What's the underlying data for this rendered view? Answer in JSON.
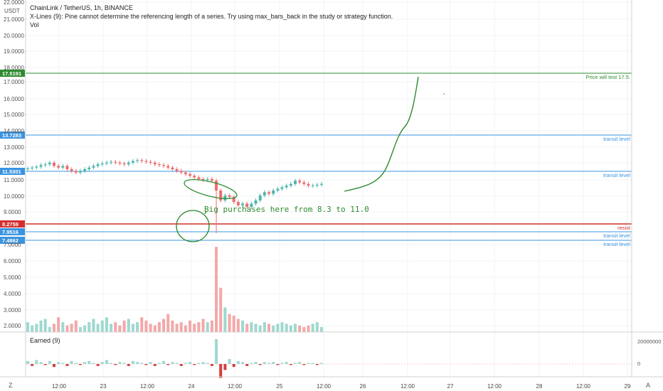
{
  "header": {
    "title": "ChainLink / TetherUS, 1h, BINANCE",
    "warning": "X-Lines (9): Pine cannot determine the referencing length of a series. Try using max_bars_back in the study or strategy function.",
    "vol_label": "Vol",
    "currency": "USDT"
  },
  "indicator": {
    "label": "Earned (9)",
    "ticks": [
      "20000000",
      "0"
    ]
  },
  "footer": {
    "left_icon": "Z",
    "right_icon": "A"
  },
  "annotations": {
    "callout": "Big purchases here from 8.3 to 11.0",
    "price_test": "Price will test 17.5.",
    "transit": "transit level",
    "resist": "resist"
  },
  "colors": {
    "up": "#4db6ac",
    "down": "#ef6c6c",
    "vol_up": "#9fd8cf",
    "vol_down": "#f4a8a8",
    "line_blue": "#3a94e0",
    "line_green": "#2e8b2e",
    "line_red": "#d32f2f",
    "drawing_green": "#2e8b2e"
  },
  "chart_data": {
    "type": "candlestick",
    "y_axis_labels": [
      "22.0000",
      "21.0000",
      "20.0000",
      "19.0000",
      "18.0000",
      "17.0000",
      "16.0000",
      "15.0000",
      "14.0000",
      "13.0000",
      "12.0000",
      "11.0000",
      "10.0000",
      "9.0000",
      "7.0000",
      "6.0000",
      "5.0000",
      "4.0000",
      "3.0000",
      "2.0000"
    ],
    "ylim": [
      1.5,
      22.5
    ],
    "x_axis_labels": [
      "12:00",
      "23",
      "12:00",
      "24",
      "12:00",
      "25",
      "12:00",
      "26",
      "12:00",
      "27",
      "12:00",
      "28",
      "12:00",
      "29"
    ],
    "level_lines": [
      {
        "price": 17.5191,
        "label": "17.5191",
        "color": "#2e8b2e",
        "text": "Price will test 17.5."
      },
      {
        "price": 13.7283,
        "label": "13.7283",
        "color": "#3a94e0",
        "text": "transit level"
      },
      {
        "price": 11.5301,
        "label": "11.5301",
        "color": "#3a94e0",
        "text": "transit level"
      },
      {
        "price": 8.2759,
        "label": "8.2759",
        "color": "#d32f2f",
        "text": "resist"
      },
      {
        "price": 7.9516,
        "label": "7.9516",
        "color": "#3a94e0",
        "text": "transit level"
      },
      {
        "price": 7.4862,
        "label": "7.4862",
        "color": "#3a94e0",
        "text": "transit level"
      }
    ],
    "candle_close": [
      12.25,
      12.3,
      12.35,
      12.45,
      12.5,
      12.6,
      12.4,
      12.3,
      12.4,
      12.2,
      12.1,
      12.0,
      12.1,
      12.2,
      12.3,
      12.4,
      12.5,
      12.55,
      12.6,
      12.65,
      12.6,
      12.55,
      12.5,
      12.6,
      12.7,
      12.75,
      12.7,
      12.65,
      12.6,
      12.5,
      12.45,
      12.4,
      12.3,
      12.2,
      12.1,
      12.0,
      11.9,
      11.8,
      11.7,
      11.6,
      11.55,
      11.6,
      11.5,
      10.9,
      10.3,
      10.6,
      10.5,
      10.2,
      10.0,
      10.1,
      9.9,
      10.1,
      10.3,
      10.6,
      10.8,
      10.7,
      10.9,
      11.0,
      11.1,
      11.2,
      11.3,
      11.5,
      11.4,
      11.3,
      11.2,
      11.2,
      11.25,
      11.3
    ],
    "volume": [
      2.1,
      1.9,
      2.0,
      2.2,
      2.3,
      1.8,
      2.0,
      2.4,
      2.1,
      1.9,
      2.0,
      2.2,
      1.8,
      1.9,
      2.1,
      2.3,
      2.0,
      2.2,
      2.4,
      2.0,
      2.1,
      1.9,
      2.2,
      2.3,
      2.0,
      2.1,
      2.4,
      2.2,
      2.0,
      1.9,
      2.1,
      2.3,
      2.6,
      2.2,
      2.0,
      2.1,
      1.9,
      2.2,
      2.0,
      2.1,
      2.3,
      2.1,
      2.2,
      6.7,
      4.2,
      3.0,
      2.6,
      2.5,
      2.3,
      2.2,
      2.0,
      2.1,
      2.0,
      1.9,
      2.1,
      2.0,
      1.9,
      2.0,
      2.1,
      2.0,
      1.9,
      2.0,
      1.9,
      1.8,
      1.9,
      2.0,
      2.1,
      1.8
    ],
    "earned": [
      0.3,
      -0.2,
      0.4,
      0.2,
      -0.1,
      0.3,
      -0.3,
      0.2,
      0.1,
      -0.2,
      0.3,
      0.1,
      -0.1,
      0.2,
      0.3,
      0.1,
      -0.2,
      0.2,
      0.4,
      0.1,
      -0.1,
      0.2,
      0.1,
      -0.2,
      0.3,
      0.2,
      0.1,
      -0.1,
      0.2,
      -0.2,
      0.1,
      0.3,
      -0.1,
      0.2,
      0.1,
      -0.2,
      0.1,
      0.2,
      -0.1,
      0.1,
      0.2,
      0.1,
      -0.2,
      2.5,
      -1.4,
      -0.6,
      0.5,
      -0.3,
      0.3,
      0.2,
      -0.2,
      0.1,
      0.2,
      -0.1,
      0.2,
      0.1,
      0.2,
      -0.1,
      0.1,
      0.2,
      -0.1,
      0.1,
      0.2,
      -0.1,
      0.1,
      0.1,
      -0.1,
      0.1
    ]
  }
}
